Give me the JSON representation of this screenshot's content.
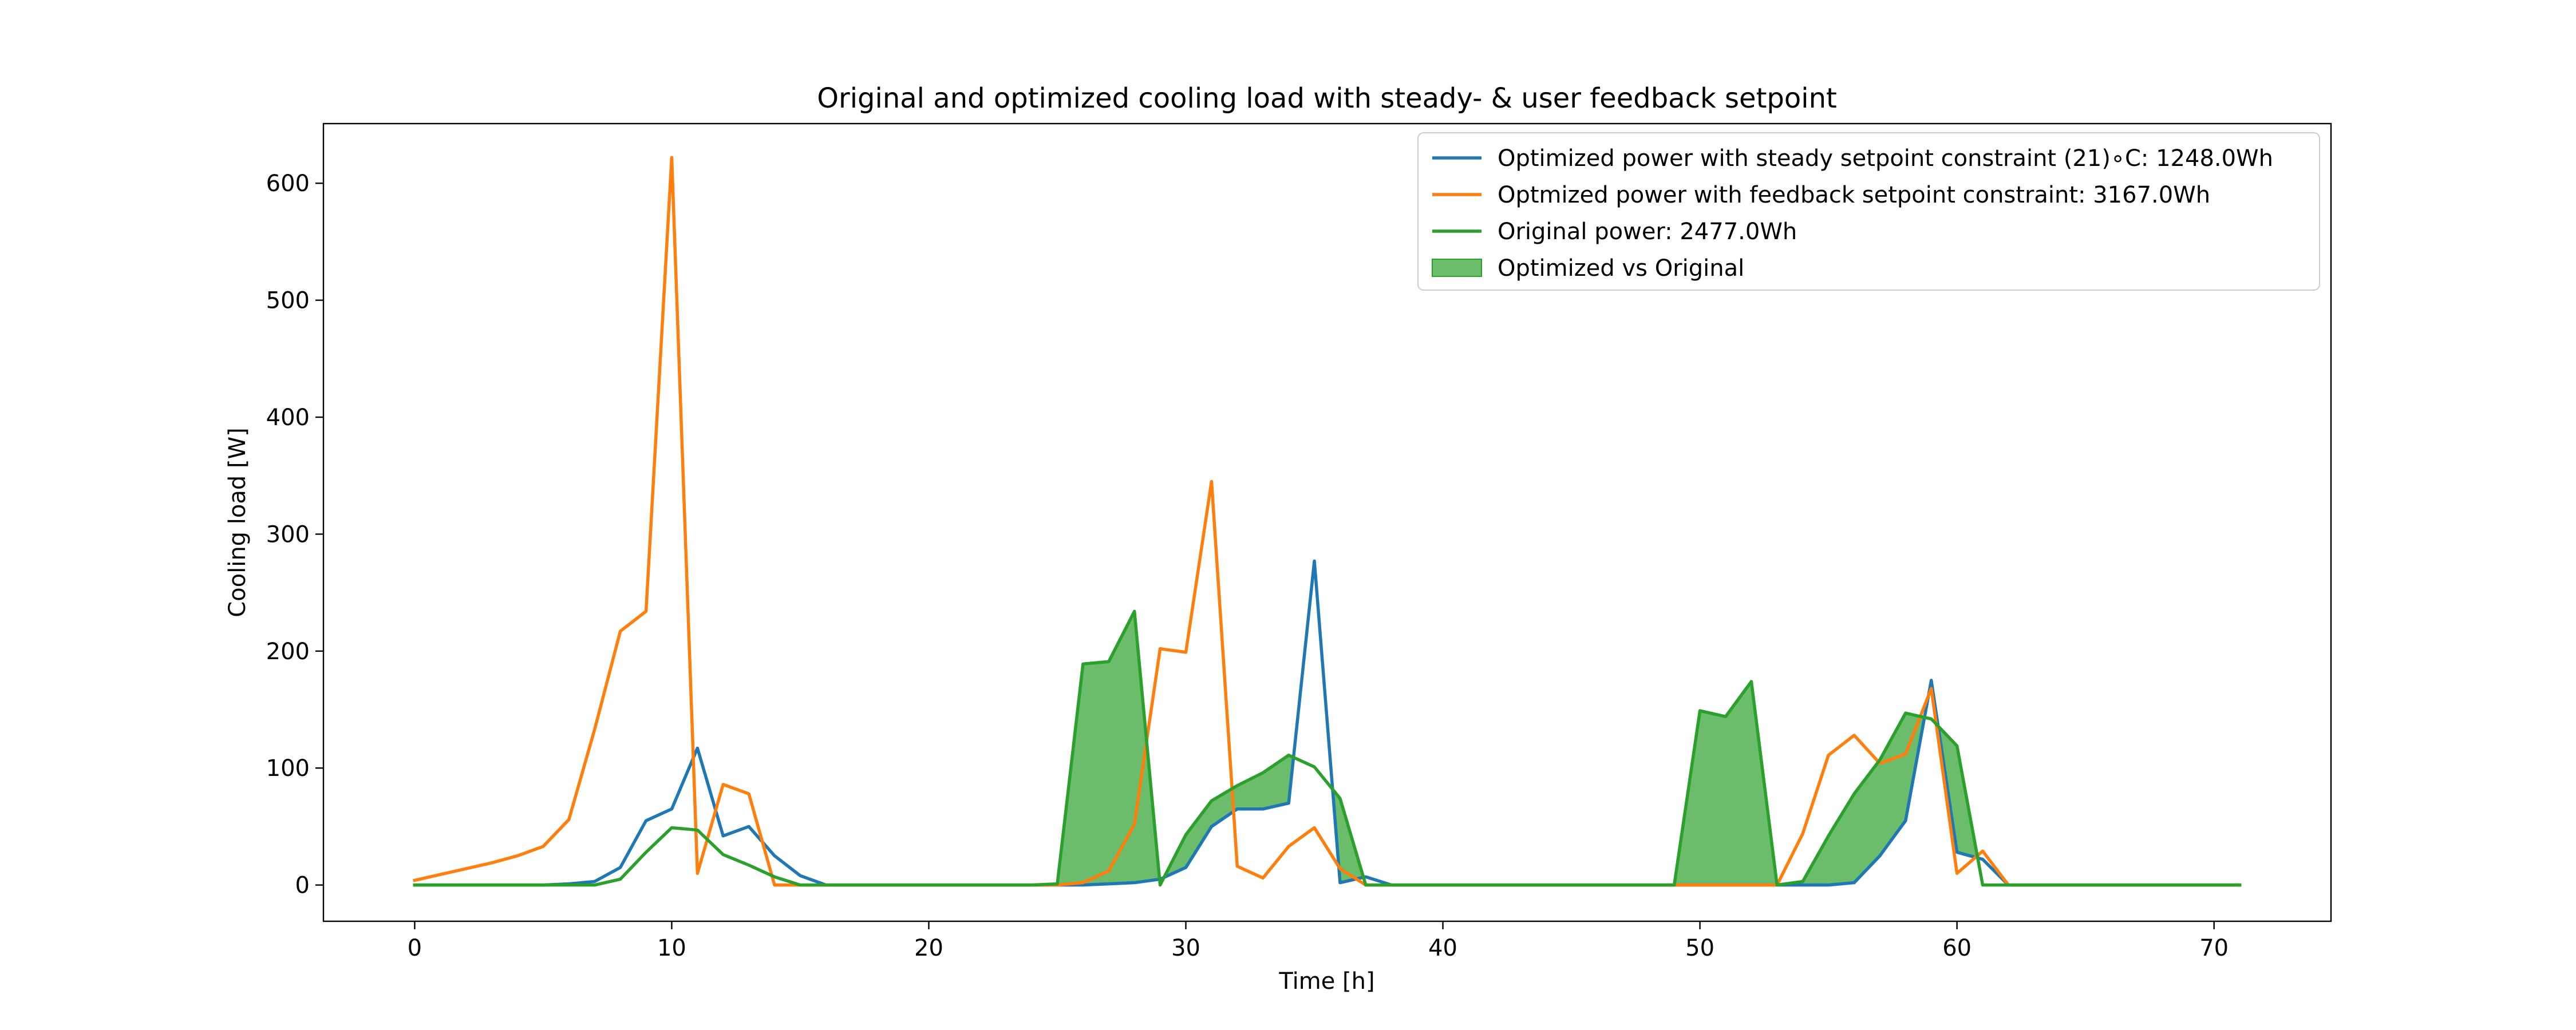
{
  "chart_data": {
    "type": "line",
    "title": "Original and optimized cooling load with steady- & user feedback setpoint",
    "xlabel": "Time [h]",
    "ylabel": "Cooling load [W]",
    "xlim": [
      -3.55,
      74.55
    ],
    "ylim": [
      -31,
      651
    ],
    "xticks": [
      0,
      10,
      20,
      30,
      40,
      50,
      60,
      70
    ],
    "xtick_labels": [
      "0",
      "10",
      "20",
      "30",
      "40",
      "50",
      "60",
      "70"
    ],
    "yticks": [
      0,
      100,
      200,
      300,
      400,
      500,
      600
    ],
    "ytick_labels": [
      "0",
      "100",
      "200",
      "300",
      "400",
      "500",
      "600"
    ],
    "grid": false,
    "legend_position": "top-right",
    "colors": {
      "steady": "#1f77b4",
      "feedback": "#ff7f0e",
      "original": "#2ca02c",
      "fill": "#2ca02c"
    },
    "fill_between": {
      "name": "Optimized vs Original",
      "between": [
        "original",
        "steady"
      ],
      "where": "original > steady",
      "alpha": 0.7
    },
    "series": [
      {
        "key": "steady",
        "name": "Optimized power with steady setpoint constraint (21)∘C: 1248.0Wh",
        "x": [
          0,
          1,
          2,
          3,
          4,
          5,
          6,
          7,
          8,
          9,
          10,
          11,
          12,
          13,
          14,
          15,
          16,
          17,
          18,
          19,
          20,
          21,
          22,
          23,
          24,
          25,
          26,
          27,
          28,
          29,
          30,
          31,
          32,
          33,
          34,
          35,
          36,
          37,
          38,
          39,
          40,
          41,
          42,
          43,
          44,
          45,
          46,
          47,
          48,
          49,
          50,
          51,
          52,
          53,
          54,
          55,
          56,
          57,
          58,
          59,
          60,
          61,
          62,
          63,
          64,
          65,
          66,
          67,
          68,
          69,
          70,
          71
        ],
        "y": [
          0,
          0,
          0,
          0,
          0,
          0,
          1,
          3,
          15,
          55,
          65,
          117,
          42,
          50,
          25,
          8,
          0,
          0,
          0,
          0,
          0,
          0,
          0,
          0,
          0,
          0,
          0,
          1,
          2,
          5,
          15,
          50,
          65,
          65,
          70,
          277,
          2,
          7,
          0,
          0,
          0,
          0,
          0,
          0,
          0,
          0,
          0,
          0,
          0,
          0,
          0,
          0,
          0,
          0,
          0,
          0,
          2,
          25,
          55,
          175,
          28,
          22,
          0,
          0,
          0,
          0,
          0,
          0,
          0,
          0,
          0,
          0
        ]
      },
      {
        "key": "feedback",
        "name": "Optmized power with feedback setpoint constraint: 3167.0Wh",
        "x": [
          0,
          1,
          2,
          3,
          4,
          5,
          6,
          7,
          8,
          9,
          10,
          11,
          12,
          13,
          14,
          15,
          16,
          17,
          18,
          19,
          20,
          21,
          22,
          23,
          24,
          25,
          26,
          27,
          28,
          29,
          30,
          31,
          32,
          33,
          34,
          35,
          36,
          37,
          38,
          39,
          40,
          41,
          42,
          43,
          44,
          45,
          46,
          47,
          48,
          49,
          50,
          51,
          52,
          53,
          54,
          55,
          56,
          57,
          58,
          59,
          60,
          61,
          62,
          63,
          64,
          65,
          66,
          67,
          68,
          69,
          70,
          71
        ],
        "y": [
          4,
          9,
          14,
          19,
          25,
          33,
          56,
          133,
          217,
          234,
          622,
          10,
          86,
          78,
          0,
          0,
          0,
          0,
          0,
          0,
          0,
          0,
          0,
          0,
          0,
          0,
          2,
          12,
          52,
          202,
          199,
          345,
          16,
          6,
          33,
          49,
          14,
          0,
          0,
          0,
          0,
          0,
          0,
          0,
          0,
          0,
          0,
          0,
          0,
          0,
          0,
          0,
          0,
          0,
          44,
          111,
          128,
          104,
          112,
          168,
          10,
          29,
          0,
          0,
          0,
          0,
          0,
          0,
          0,
          0,
          0,
          0
        ]
      },
      {
        "key": "original",
        "name": "Original power: 2477.0Wh",
        "x": [
          0,
          1,
          2,
          3,
          4,
          5,
          6,
          7,
          8,
          9,
          10,
          11,
          12,
          13,
          14,
          15,
          16,
          17,
          18,
          19,
          20,
          21,
          22,
          23,
          24,
          25,
          26,
          27,
          28,
          29,
          30,
          31,
          32,
          33,
          34,
          35,
          36,
          37,
          38,
          39,
          40,
          41,
          42,
          43,
          44,
          45,
          46,
          47,
          48,
          49,
          50,
          51,
          52,
          53,
          54,
          55,
          56,
          57,
          58,
          59,
          60,
          61,
          62,
          63,
          64,
          65,
          66,
          67,
          68,
          69,
          70,
          71
        ],
        "y": [
          0,
          0,
          0,
          0,
          0,
          0,
          0,
          0,
          5,
          28,
          49,
          47,
          26,
          17,
          7,
          0,
          0,
          0,
          0,
          0,
          0,
          0,
          0,
          0,
          0,
          1,
          189,
          191,
          234,
          0,
          43,
          72,
          85,
          96,
          111,
          101,
          74,
          0,
          0,
          0,
          0,
          0,
          0,
          0,
          0,
          0,
          0,
          0,
          0,
          0,
          149,
          144,
          174,
          0,
          3,
          42,
          78,
          107,
          147,
          142,
          119,
          0,
          0,
          0,
          0,
          0,
          0,
          0,
          0,
          0,
          0,
          0
        ]
      }
    ],
    "legend": [
      {
        "label": "Optimized power with steady setpoint constraint (21)∘C: 1248.0Wh",
        "kind": "line",
        "color_key": "steady"
      },
      {
        "label": "Optmized power with feedback setpoint constraint: 3167.0Wh",
        "kind": "line",
        "color_key": "feedback"
      },
      {
        "label": "Original power: 2477.0Wh",
        "kind": "line",
        "color_key": "original"
      },
      {
        "label": "Optimized vs Original",
        "kind": "patch",
        "color_key": "fill"
      }
    ]
  }
}
